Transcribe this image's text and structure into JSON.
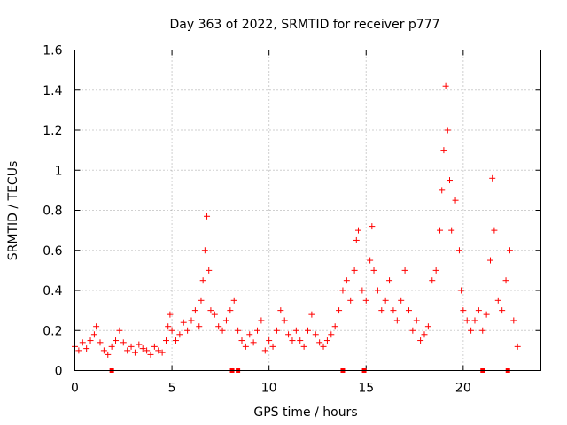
{
  "chart_data": {
    "type": "scatter",
    "title": "Day 363 of 2022, SRMTID for receiver p777",
    "xlabel": "GPS time / hours",
    "ylabel": "SRMTID / TECUs",
    "xlim": [
      0,
      24
    ],
    "ylim": [
      0,
      1.6
    ],
    "xticks": [
      0,
      5,
      10,
      15,
      20
    ],
    "yticks": [
      0,
      0.2,
      0.4,
      0.6,
      0.8,
      1,
      1.2,
      1.4,
      1.6
    ],
    "xtick_labels": [
      "0",
      "5",
      "10",
      "15",
      "20"
    ],
    "ytick_labels": [
      "0",
      "0.2",
      "0.4",
      "0.6",
      "0.8",
      "1",
      "1.2",
      "1.4",
      "1.6"
    ],
    "grid": true,
    "marker": "+",
    "color": "#ff0000",
    "series": [
      {
        "name": "SRMTID",
        "x": [
          0.0,
          0.2,
          0.4,
          0.6,
          0.8,
          1.0,
          1.1,
          1.3,
          1.5,
          1.7,
          1.9,
          2.1,
          2.3,
          2.5,
          2.7,
          2.9,
          3.1,
          3.3,
          3.5,
          3.7,
          3.9,
          4.1,
          4.3,
          4.5,
          4.7,
          4.8,
          4.9,
          5.0,
          5.2,
          5.4,
          5.6,
          5.8,
          6.0,
          6.2,
          6.4,
          6.5,
          6.6,
          6.7,
          6.8,
          6.9,
          7.0,
          7.2,
          7.4,
          7.6,
          7.8,
          8.0,
          8.2,
          8.4,
          8.6,
          8.8,
          9.0,
          9.2,
          9.4,
          9.6,
          9.8,
          10.0,
          10.2,
          10.4,
          10.6,
          10.8,
          11.0,
          11.2,
          11.4,
          11.6,
          11.8,
          12.0,
          12.2,
          12.4,
          12.6,
          12.8,
          13.0,
          13.2,
          13.4,
          13.6,
          13.8,
          14.0,
          14.2,
          14.4,
          14.5,
          14.6,
          14.8,
          15.0,
          15.2,
          15.3,
          15.4,
          15.6,
          15.8,
          16.0,
          16.2,
          16.4,
          16.6,
          16.8,
          17.0,
          17.2,
          17.4,
          17.6,
          17.8,
          18.0,
          18.2,
          18.4,
          18.6,
          18.8,
          18.9,
          19.0,
          19.1,
          19.2,
          19.3,
          19.4,
          19.6,
          19.8,
          19.9,
          20.0,
          20.2,
          20.4,
          20.6,
          20.8,
          21.0,
          21.2,
          21.4,
          21.5,
          21.6,
          21.8,
          22.0,
          22.2,
          22.4,
          22.6,
          22.8
        ],
        "y": [
          0.12,
          0.1,
          0.14,
          0.11,
          0.15,
          0.18,
          0.22,
          0.14,
          0.1,
          0.08,
          0.12,
          0.15,
          0.2,
          0.14,
          0.1,
          0.12,
          0.09,
          0.13,
          0.11,
          0.1,
          0.08,
          0.12,
          0.1,
          0.09,
          0.15,
          0.22,
          0.28,
          0.2,
          0.15,
          0.18,
          0.24,
          0.2,
          0.25,
          0.3,
          0.22,
          0.35,
          0.45,
          0.6,
          0.77,
          0.5,
          0.3,
          0.28,
          0.22,
          0.2,
          0.25,
          0.3,
          0.35,
          0.2,
          0.15,
          0.12,
          0.18,
          0.14,
          0.2,
          0.25,
          0.1,
          0.15,
          0.12,
          0.2,
          0.3,
          0.25,
          0.18,
          0.15,
          0.2,
          0.15,
          0.12,
          0.2,
          0.28,
          0.18,
          0.14,
          0.12,
          0.15,
          0.18,
          0.22,
          0.3,
          0.4,
          0.45,
          0.35,
          0.5,
          0.65,
          0.7,
          0.4,
          0.35,
          0.55,
          0.72,
          0.5,
          0.4,
          0.3,
          0.35,
          0.45,
          0.3,
          0.25,
          0.35,
          0.5,
          0.3,
          0.2,
          0.25,
          0.15,
          0.18,
          0.22,
          0.45,
          0.5,
          0.7,
          0.9,
          1.1,
          1.42,
          1.2,
          0.95,
          0.7,
          0.85,
          0.6,
          0.4,
          0.3,
          0.25,
          0.2,
          0.25,
          0.3,
          0.2,
          0.28,
          0.55,
          0.96,
          0.7,
          0.35,
          0.3,
          0.45,
          0.6,
          0.25,
          0.12
        ]
      }
    ],
    "data_gap_markers_x": [
      1.9,
      8.1,
      8.4,
      13.8,
      14.9,
      21.0,
      22.3
    ]
  }
}
